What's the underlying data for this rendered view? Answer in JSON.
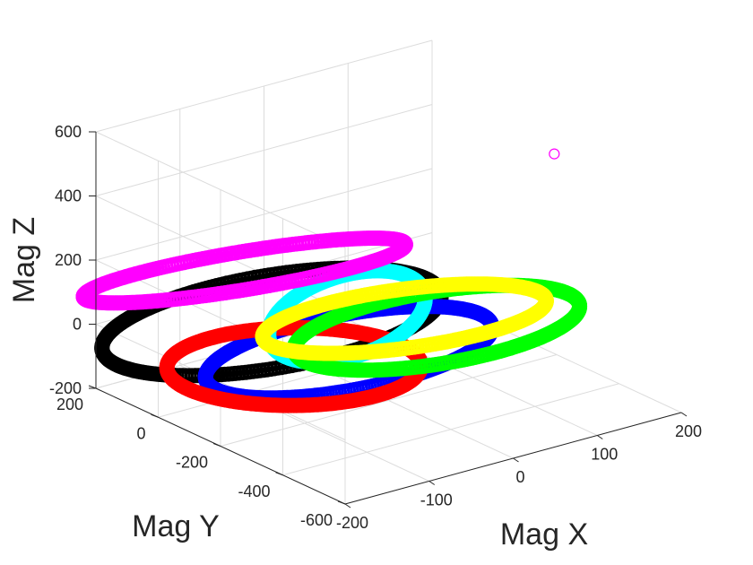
{
  "chart_data": {
    "type": "scatter3d",
    "xlabel": "Mag X",
    "ylabel": "Mag Y",
    "zlabel": "Mag Z",
    "xlim": [
      -200,
      200
    ],
    "ylim": [
      -600,
      200
    ],
    "zlim": [
      -200,
      600
    ],
    "xticks": [
      -200,
      -100,
      0,
      100,
      200
    ],
    "yticks": [
      -600,
      -400,
      -200,
      0,
      200
    ],
    "zticks": [
      -200,
      0,
      200,
      400,
      600
    ],
    "xtick_labels": [
      "-200",
      "-100",
      "0",
      "100",
      "200"
    ],
    "ytick_labels": [
      "-600",
      "-400",
      "-200",
      "0",
      "200"
    ],
    "ztick_labels": [
      "-200",
      "0",
      "200",
      "400",
      "600"
    ],
    "grid": true,
    "marker": "circle-open",
    "series": [
      {
        "color": "#000000",
        "ring": {
          "center": [
            -80,
            -40,
            30
          ],
          "radius": 190,
          "tilt_deg": 8,
          "tilt_axis_deg": 20,
          "points": 300
        }
      },
      {
        "color": "#0000ff",
        "ring": {
          "center": [
            -40,
            -180,
            -30
          ],
          "radius": 160,
          "tilt_deg": 5,
          "tilt_axis_deg": 0,
          "points": 300
        }
      },
      {
        "color": "#ff0000",
        "ring": {
          "center": [
            -120,
            -220,
            0
          ],
          "radius": 160,
          "tilt_deg": 28,
          "tilt_axis_deg": 60,
          "points": 300
        }
      },
      {
        "color": "#00ffff",
        "ring": {
          "center": [
            -20,
            -120,
            40
          ],
          "radius": 110,
          "tilt_deg": 70,
          "tilt_axis_deg": 20,
          "points": 240
        }
      },
      {
        "color": "#00ff00",
        "ring": {
          "center": [
            50,
            -220,
            0
          ],
          "radius": 160,
          "tilt_deg": 6,
          "tilt_axis_deg": 45,
          "points": 300
        }
      },
      {
        "color": "#ffff00",
        "ring": {
          "center": [
            30,
            -170,
            20
          ],
          "radius": 160,
          "tilt_deg": 10,
          "tilt_axis_deg": 100,
          "points": 300
        }
      },
      {
        "color": "#ff00ff",
        "ring": {
          "center": [
            -90,
            20,
            170
          ],
          "radius": 180,
          "tilt_deg": 18,
          "tilt_axis_deg": 150,
          "points": 300
        }
      },
      {
        "color": "#ff00ff",
        "points": [
          [
            160,
            -300,
            500
          ]
        ]
      }
    ]
  }
}
